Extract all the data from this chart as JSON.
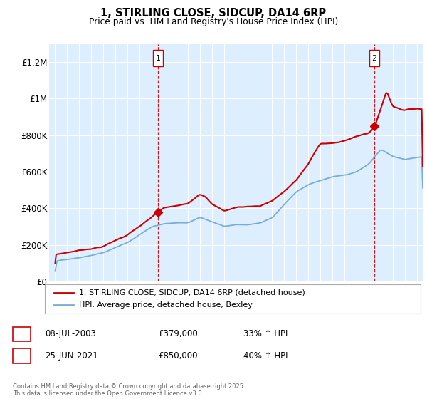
{
  "title": "1, STIRLING CLOSE, SIDCUP, DA14 6RP",
  "subtitle": "Price paid vs. HM Land Registry's House Price Index (HPI)",
  "xlim": [
    1994.5,
    2025.5
  ],
  "ylim": [
    0,
    1300000
  ],
  "yticks": [
    0,
    200000,
    400000,
    600000,
    800000,
    1000000,
    1200000
  ],
  "ytick_labels": [
    "£0",
    "£200K",
    "£400K",
    "£600K",
    "£800K",
    "£1M",
    "£1.2M"
  ],
  "xticks": [
    1995,
    1996,
    1997,
    1998,
    1999,
    2000,
    2001,
    2002,
    2003,
    2004,
    2005,
    2006,
    2007,
    2008,
    2009,
    2010,
    2011,
    2012,
    2013,
    2014,
    2015,
    2016,
    2017,
    2018,
    2019,
    2020,
    2021,
    2022,
    2023,
    2024,
    2025
  ],
  "red_color": "#cc0000",
  "blue_color": "#7aadd4",
  "bg_color": "#ddeeff",
  "vline_color": "#cc0000",
  "marker1_x": 2003.54,
  "marker1_y": 379000,
  "marker2_x": 2021.49,
  "marker2_y": 850000,
  "legend_red": "1, STIRLING CLOSE, SIDCUP, DA14 6RP (detached house)",
  "legend_blue": "HPI: Average price, detached house, Bexley",
  "table_rows": [
    {
      "num": "1",
      "date": "08-JUL-2003",
      "price": "£379,000",
      "change": "33% ↑ HPI"
    },
    {
      "num": "2",
      "date": "25-JUN-2021",
      "price": "£850,000",
      "change": "40% ↑ HPI"
    }
  ],
  "footnote": "Contains HM Land Registry data © Crown copyright and database right 2025.\nThis data is licensed under the Open Government Licence v3.0."
}
